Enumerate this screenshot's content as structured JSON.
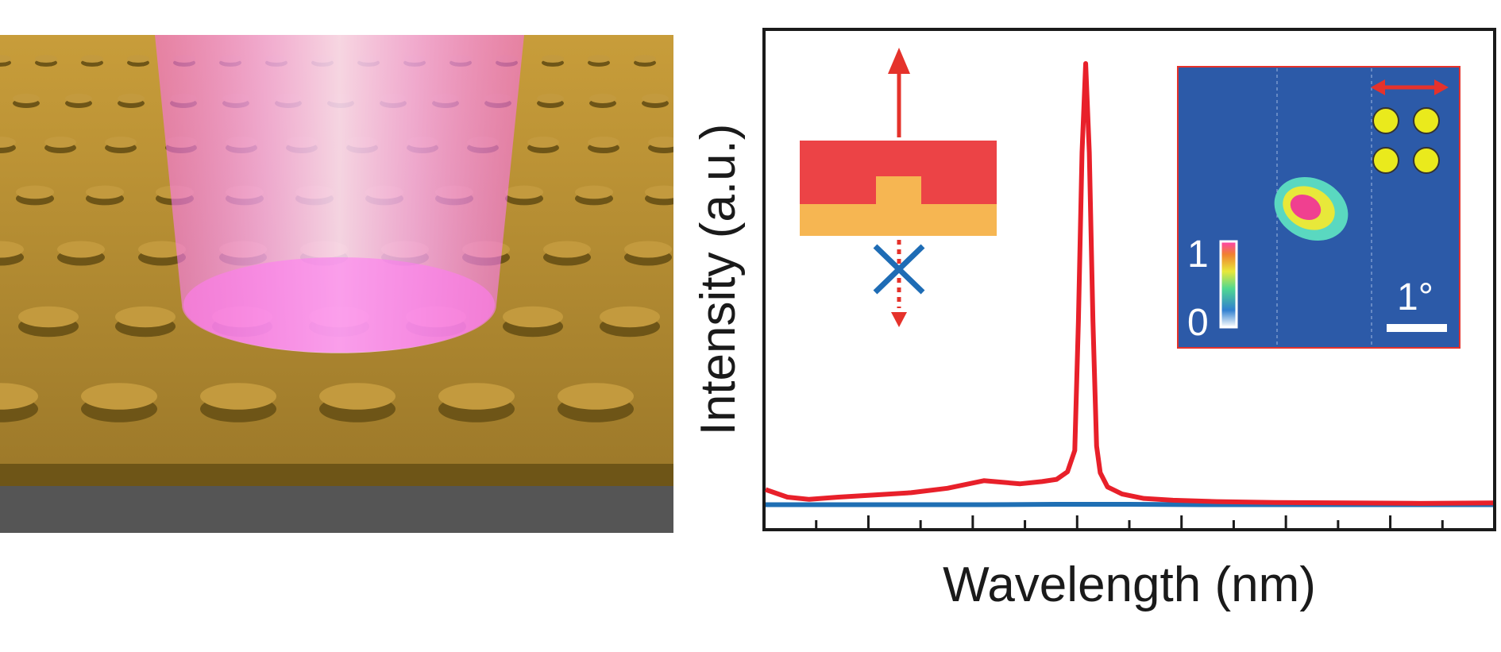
{
  "chart_data": {
    "type": "line",
    "xlabel": "Wavelength (nm)",
    "ylabel": "Intensity (a.u.)",
    "x_tick_count": 13,
    "xlim": [
      0,
      1
    ],
    "ylim": [
      0,
      1
    ],
    "series": [
      {
        "color": "#e8202a",
        "x": [
          0.0,
          0.03,
          0.06,
          0.1,
          0.15,
          0.2,
          0.25,
          0.3,
          0.35,
          0.38,
          0.4,
          0.415,
          0.425,
          0.43,
          0.435,
          0.44,
          0.445,
          0.45,
          0.455,
          0.46,
          0.47,
          0.49,
          0.52,
          0.56,
          0.62,
          0.7,
          0.8,
          0.9,
          1.0
        ],
        "y": [
          0.042,
          0.025,
          0.02,
          0.025,
          0.03,
          0.035,
          0.045,
          0.062,
          0.055,
          0.06,
          0.065,
          0.082,
          0.13,
          0.42,
          0.8,
          1.0,
          0.8,
          0.42,
          0.14,
          0.08,
          0.048,
          0.032,
          0.022,
          0.018,
          0.015,
          0.013,
          0.012,
          0.011,
          0.012
        ]
      },
      {
        "color": "#1f6fb4",
        "x": [
          0.0,
          0.1,
          0.2,
          0.3,
          0.4,
          0.5,
          0.6,
          0.7,
          0.8,
          0.9,
          1.0
        ],
        "y": [
          0.008,
          0.008,
          0.008,
          0.008,
          0.009,
          0.009,
          0.008,
          0.008,
          0.008,
          0.008,
          0.008
        ]
      }
    ]
  },
  "insets": {
    "mode_schematic": {
      "allowed_direction": "up",
      "blocked_direction": "down",
      "colors": {
        "slab": "#ec4346",
        "substrate": "#f6b652",
        "emission": "#e5322b",
        "block_mark": "#1e6cb5"
      }
    },
    "far_field": {
      "colorbar_max": "1",
      "colorbar_min": "0",
      "scale_label": "1°",
      "colors": {
        "background": "#2c5aa8",
        "lattice_dots": "#eaea1c",
        "arrow": "#e5322b",
        "frame": "#e5322b"
      }
    }
  },
  "render": {
    "colors": {
      "gold": "#b08a31",
      "beam": "#ff8cff",
      "substrate": "#555555"
    }
  }
}
